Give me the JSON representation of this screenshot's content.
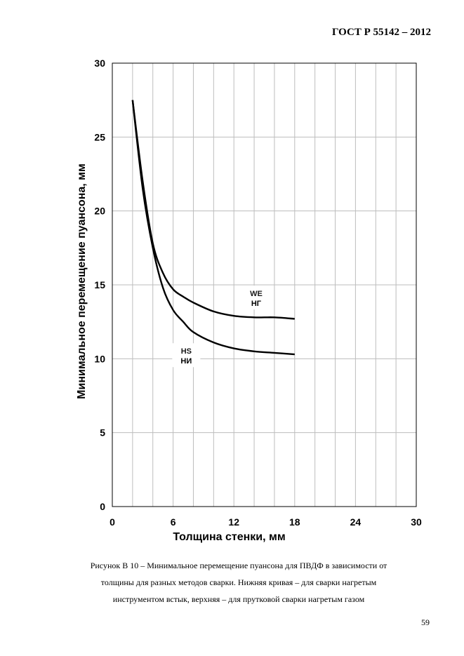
{
  "header": {
    "standard": "ГОСТ Р  55142 – 2012"
  },
  "chart_data": {
    "type": "line",
    "title": "",
    "xlabel": "Толщина стенки, мм",
    "ylabel": "Минимальное перемещение пуансона, мм",
    "xlim": [
      0,
      30
    ],
    "ylim": [
      0,
      30
    ],
    "xticks": [
      0,
      6,
      12,
      18,
      24,
      30
    ],
    "yticks": [
      0,
      5,
      10,
      15,
      20,
      25,
      30
    ],
    "grid": true,
    "series": [
      {
        "name": "НГ",
        "code": "WE",
        "x": [
          2,
          3,
          4,
          5,
          6,
          7,
          8,
          10,
          12,
          14,
          16,
          18
        ],
        "y": [
          27.5,
          22,
          17.8,
          15.8,
          14.7,
          14.2,
          13.8,
          13.2,
          12.9,
          12.8,
          12.8,
          12.7
        ]
      },
      {
        "name": "НИ",
        "code": "HS",
        "x": [
          2,
          3,
          4,
          5,
          6,
          7,
          8,
          10,
          12,
          14,
          16,
          18
        ],
        "y": [
          27.5,
          21.5,
          17.5,
          14.8,
          13.3,
          12.5,
          11.8,
          11.1,
          10.7,
          10.5,
          10.4,
          10.3
        ]
      }
    ]
  },
  "caption": {
    "line1": "Рисунок В 10 – Минимальное перемещение пуансона для ПВДФ в зависимости от",
    "line2": "толщины для разных методов сварки. Нижняя кривая – для сварки нагретым",
    "line3": "инструментом встык, верхняя – для прутковой сварки нагретым газом"
  },
  "page_number": "59"
}
